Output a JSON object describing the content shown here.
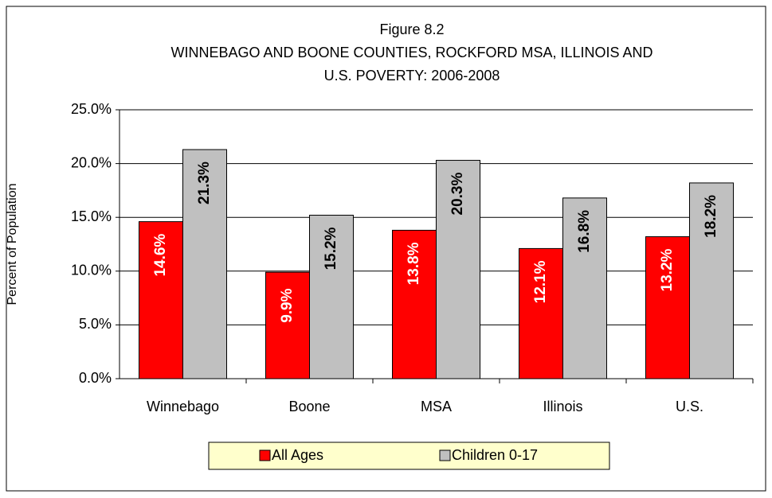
{
  "chart_data": {
    "type": "bar",
    "title": [
      "Figure 8.2",
      "WINNEBAGO AND BOONE COUNTIES, ROCKFORD MSA, ILLINOIS AND",
      "U.S. POVERTY:  2006-2008"
    ],
    "y_label": "Percent of Population",
    "categories": [
      "Winnebago",
      "Boone",
      "MSA",
      "Illinois",
      "U.S."
    ],
    "series": [
      {
        "name": "All Ages",
        "color": "#ff0000",
        "label_color": "#ffffff",
        "values": [
          14.6,
          9.9,
          13.8,
          12.1,
          13.2
        ],
        "value_labels": [
          "14.6%",
          "9.9%",
          "13.8%",
          "12.1%",
          "13.2%"
        ]
      },
      {
        "name": "Children 0-17",
        "color": "#c0c0c0",
        "label_color": "#000000",
        "values": [
          21.3,
          15.2,
          20.3,
          16.8,
          18.2
        ],
        "value_labels": [
          "21.3%",
          "15.2%",
          "20.3%",
          "16.8%",
          "18.2%"
        ]
      }
    ],
    "ylim": [
      0,
      25
    ],
    "yticks": [
      {
        "value": 0,
        "label": "0.0%"
      },
      {
        "value": 5,
        "label": "5.0%"
      },
      {
        "value": 10,
        "label": "10.0%"
      },
      {
        "value": 15,
        "label": "15.0%"
      },
      {
        "value": 20,
        "label": "20.0%"
      },
      {
        "value": 25,
        "label": "25.0%"
      }
    ],
    "grid": true,
    "legend": "bottom"
  }
}
